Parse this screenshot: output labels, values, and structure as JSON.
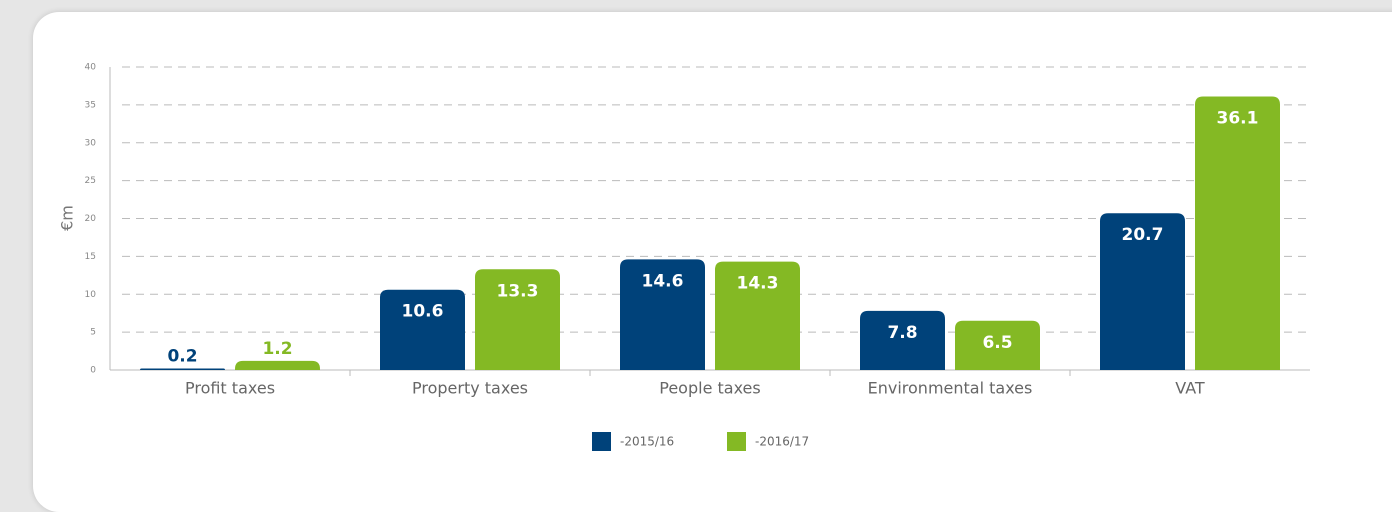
{
  "chart_data": {
    "type": "bar",
    "y_label": "€m",
    "categories": [
      "Profit taxes",
      "Property taxes",
      "People taxes",
      "Environmental taxes",
      "VAT"
    ],
    "series": [
      {
        "name": "-2015/16",
        "color": "#00427a",
        "values": [
          0.2,
          10.6,
          14.6,
          7.8,
          20.7
        ]
      },
      {
        "name": "-2016/17",
        "color": "#84b924",
        "values": [
          1.2,
          13.3,
          14.3,
          6.5,
          36.1
        ]
      }
    ],
    "ylim": [
      0,
      40
    ],
    "yticks": [
      0,
      5,
      10,
      15,
      20,
      25,
      30,
      35,
      40
    ],
    "grid": true,
    "legend": "bottom"
  }
}
